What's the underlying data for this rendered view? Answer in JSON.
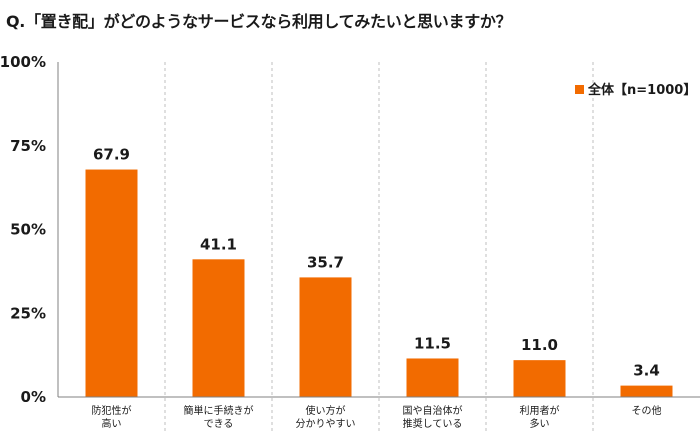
{
  "title": "Q.「置き配」がどのようなサービスなら利用してみたいと思いますか？",
  "colors": {
    "bar": "#f26b00",
    "grid": "#bfbfbf",
    "axis": "#808080"
  },
  "chart_data": {
    "type": "bar",
    "title": "Q.「置き配」がどのようなサービスなら利用してみたいと思いますか？",
    "categories": [
      [
        "防犯性が",
        "高い"
      ],
      [
        "簡単に手続きが",
        "できる"
      ],
      [
        "使い方が",
        "分かりやすい"
      ],
      [
        "国や自治体が",
        "推奨している"
      ],
      [
        "利用者が",
        "多い"
      ],
      [
        "その他"
      ]
    ],
    "series": [
      {
        "name": "全体【n=1000】",
        "values": [
          67.9,
          41.1,
          35.7,
          11.5,
          11.0,
          3.4
        ]
      }
    ],
    "value_labels": [
      "67.9",
      "41.1",
      "35.7",
      "11.5",
      "11.0",
      "3.4"
    ],
    "ylim": [
      0,
      100
    ],
    "yticks": [
      0,
      25,
      50,
      75,
      100
    ],
    "ytick_labels": [
      "0%",
      "25%",
      "50%",
      "75%",
      "100%"
    ],
    "xlabel": "",
    "ylabel": "",
    "legend_position": "top-right",
    "grid": "vertical-dashed"
  }
}
